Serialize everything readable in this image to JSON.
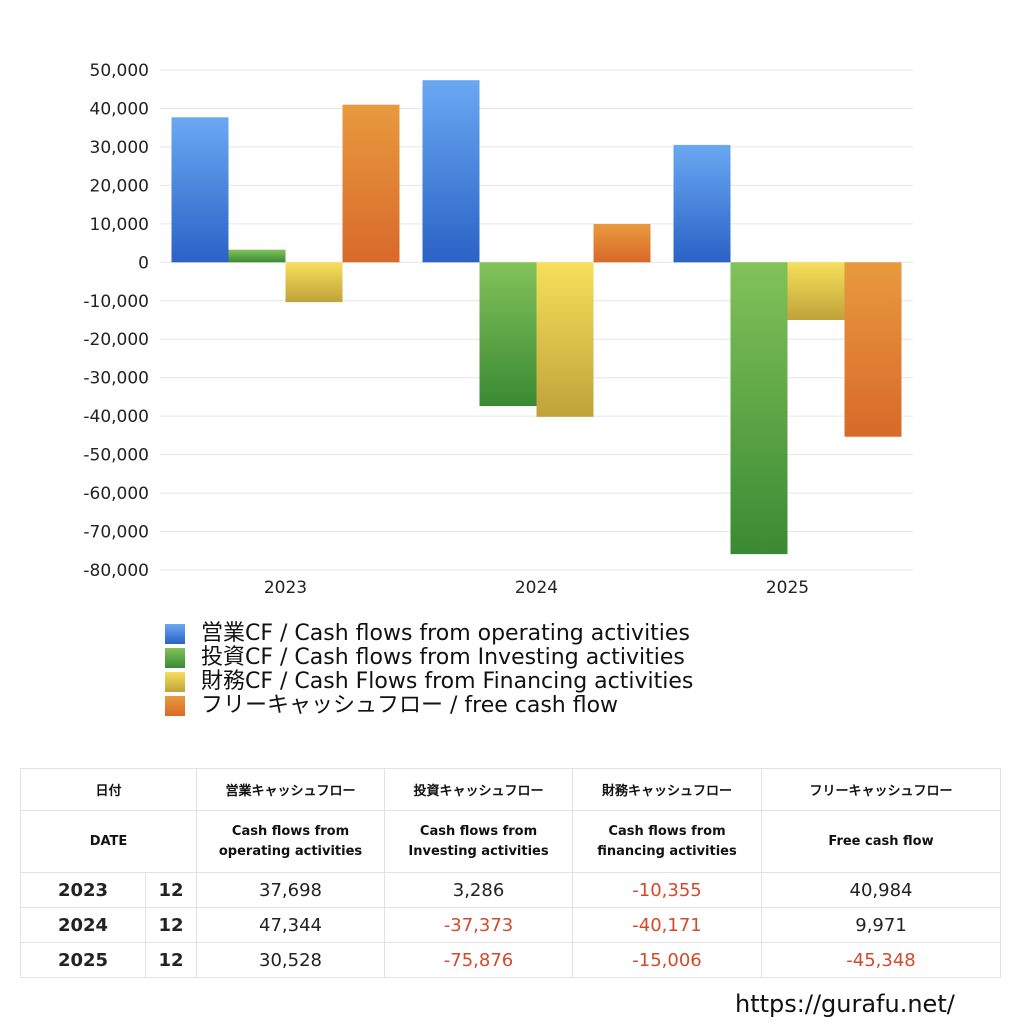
{
  "chart_data": {
    "type": "bar",
    "categories": [
      "2023",
      "2024",
      "2025"
    ],
    "series": [
      {
        "name": "営業CF / Cash flows from operating activities",
        "values": [
          37698,
          47344,
          30528
        ]
      },
      {
        "name": "投資CF / Cash flows from Investing activities",
        "values": [
          3286,
          -37373,
          -75876
        ]
      },
      {
        "name": "財務CF / Cash Flows from Financing activities",
        "values": [
          -10355,
          -40171,
          -15006
        ]
      },
      {
        "name": "フリーキャッシュフロー / free cash flow",
        "values": [
          40984,
          9971,
          -45348
        ]
      }
    ],
    "ylim": [
      -80000,
      50000
    ],
    "yticks": [
      50000,
      40000,
      30000,
      20000,
      10000,
      0,
      -10000,
      -20000,
      -30000,
      -40000,
      -50000,
      -60000,
      -70000,
      -80000
    ],
    "ytick_labels": [
      "50,000",
      "40,000",
      "30,000",
      "20,000",
      "10,000",
      "0",
      "-10,000",
      "-20,000",
      "-30,000",
      "-40,000",
      "-50,000",
      "-60,000",
      "-70,000",
      "-80,000"
    ],
    "grid": true,
    "legend_position": "bottom-left",
    "colors": [
      {
        "top": "#6aa8f2",
        "bottom": "#2b62c6"
      },
      {
        "top": "#82c25a",
        "bottom": "#3a8a33"
      },
      {
        "top": "#f6e05a",
        "bottom": "#c0a23a"
      },
      {
        "top": "#e89a3e",
        "bottom": "#d8692a"
      }
    ]
  },
  "legend": [
    {
      "label": "営業CF / Cash flows from operating activities",
      "color": "#4a86e0"
    },
    {
      "label": "投資CF / Cash flows from Investing activities",
      "color": "#5aa545"
    },
    {
      "label": "財務CF / Cash Flows from Financing activities",
      "color": "#e6cc4a"
    },
    {
      "label": "フリーキャッシュフロー / free cash flow",
      "color": "#e08436"
    }
  ],
  "table": {
    "header_ja": {
      "date": "日付",
      "operating": "営業キャッシュフロー",
      "investing": "投資キャッシュフロー",
      "financing": "財務キャッシュフロー",
      "free": "フリーキャッシュフロー"
    },
    "header_en": {
      "date": "DATE",
      "operating_1": "Cash flows from",
      "operating_2": "operating activities",
      "investing_1": "Cash flows from",
      "investing_2": "Investing activities",
      "financing_1": "Cash flows from",
      "financing_2": "financing activities",
      "free": "Free cash flow"
    },
    "rows": [
      {
        "year": "2023",
        "month": "12",
        "operating": "37,698",
        "investing": "3,286",
        "financing": "-10,355",
        "free": "40,984"
      },
      {
        "year": "2024",
        "month": "12",
        "operating": "47,344",
        "investing": "-37,373",
        "financing": "-40,171",
        "free": "9,971"
      },
      {
        "year": "2025",
        "month": "12",
        "operating": "30,528",
        "investing": "-75,876",
        "financing": "-15,006",
        "free": "-45,348"
      }
    ]
  },
  "site_url": "https://gurafu.net/"
}
